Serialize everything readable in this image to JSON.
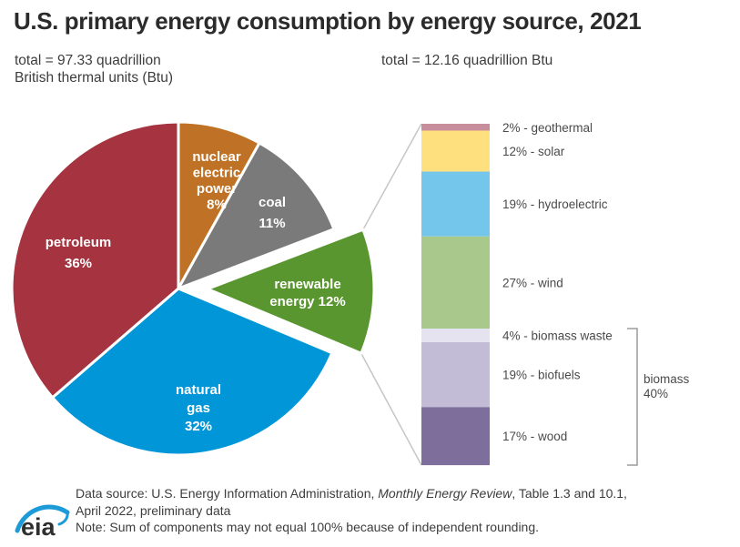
{
  "header": {
    "title": "U.S. primary energy consumption by energy source, 2021",
    "pie_total_line1": "total = 97.33 quadrillion",
    "pie_total_line2": "British thermal units (Btu)",
    "bar_total": "total = 12.16 quadrillion Btu"
  },
  "chart_data": [
    {
      "type": "pie",
      "total_label": "total = 97.33 quadrillion British thermal units (Btu)",
      "start_angle_deg_clockwise_from_top": 0,
      "slices": [
        {
          "id": "nuclear",
          "label": "nuclear electric power",
          "value_pct": 8,
          "color": "#bf7226",
          "exploded": false,
          "label_lines": [
            "nuclear",
            "electric",
            "power",
            "8%"
          ]
        },
        {
          "id": "coal",
          "label": "coal",
          "value_pct": 11,
          "color": "#7a7a7a",
          "exploded": false,
          "label_lines": [
            "coal",
            "11%"
          ]
        },
        {
          "id": "renewable",
          "label": "renewable energy",
          "value_pct": 12,
          "color": "#59962f",
          "exploded": true,
          "label_lines": [
            "renewable",
            "energy 12%"
          ]
        },
        {
          "id": "natural-gas",
          "label": "natural gas",
          "value_pct": 32,
          "color": "#0096d7",
          "exploded": false,
          "label_lines": [
            "natural",
            "gas",
            "32%"
          ]
        },
        {
          "id": "petroleum",
          "label": "petroleum",
          "value_pct": 36,
          "color": "#a53340",
          "exploded": false,
          "label_lines": [
            "petroleum",
            "36%"
          ]
        }
      ]
    },
    {
      "type": "stacked-bar",
      "total_label": "total = 12.16 quadrillion Btu",
      "segments": [
        {
          "id": "geothermal",
          "label": "2% - geothermal",
          "value_pct": 2,
          "color": "#c98e9b"
        },
        {
          "id": "solar",
          "label": "12% - solar",
          "value_pct": 12,
          "color": "#fee07e"
        },
        {
          "id": "hydroelectric",
          "label": "19% - hydroelectric",
          "value_pct": 19,
          "color": "#74c6ea"
        },
        {
          "id": "wind",
          "label": "27% - wind",
          "value_pct": 27,
          "color": "#a9c98c"
        },
        {
          "id": "biomass-waste",
          "label": "4% - biomass waste",
          "value_pct": 4,
          "color": "#e5e3ef"
        },
        {
          "id": "biofuels",
          "label": "19% - biofuels",
          "value_pct": 19,
          "color": "#c3bcd6"
        },
        {
          "id": "wood",
          "label": "17% - wood",
          "value_pct": 17,
          "color": "#7d6e9c"
        }
      ],
      "bracket": {
        "from": "biomass-waste",
        "to": "wood",
        "label_lines": [
          "biomass",
          "40%"
        ]
      }
    }
  ],
  "footer": {
    "source_prefix": "Data source: U.S. Energy Information Administration, ",
    "source_italic": "Monthly Energy Review",
    "source_suffix": ", Table 1.3 and 10.1,",
    "source_line2": "April 2022, preliminary data",
    "note": "Note: Sum of components may not equal 100% because of independent rounding.",
    "logo_text": "eia"
  },
  "colors": {
    "title_text": "#2b2b2b",
    "body_text": "#3d3d3d",
    "chart_label_text": "#4a4a4a",
    "connector_line": "#c6c6c6",
    "bracket_line": "#9b9b9b",
    "logo_blue": "#1d9bd8"
  }
}
